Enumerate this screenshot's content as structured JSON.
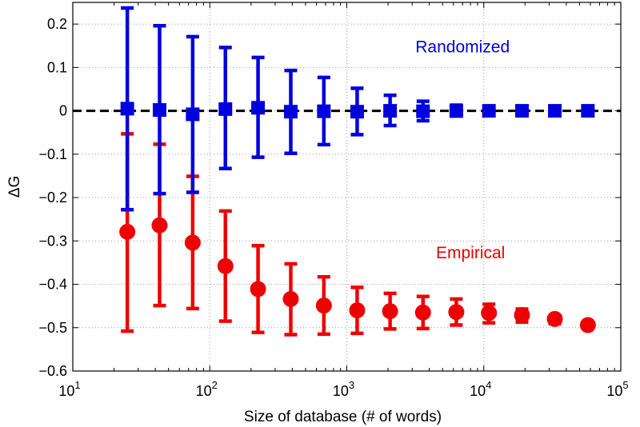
{
  "chart_data": {
    "type": "scatter",
    "title": "",
    "xlabel": "Size of database (# of words)",
    "ylabel": "ΔG",
    "xscale": "log",
    "xlim": [
      10,
      100000
    ],
    "ylim": [
      -0.6,
      0.25
    ],
    "grid": true,
    "x_ticks": [
      {
        "value": 10,
        "base": "10",
        "exp": "1"
      },
      {
        "value": 100,
        "base": "10",
        "exp": "2"
      },
      {
        "value": 1000,
        "base": "10",
        "exp": "3"
      },
      {
        "value": 10000,
        "base": "10",
        "exp": "4"
      },
      {
        "value": 100000,
        "base": "10",
        "exp": "5"
      }
    ],
    "y_ticks": [
      {
        "value": 0.2,
        "label": "0.2"
      },
      {
        "value": 0.1,
        "label": "0.1"
      },
      {
        "value": 0,
        "label": "0"
      },
      {
        "value": -0.1,
        "label": "−0.1"
      },
      {
        "value": -0.2,
        "label": "−0.2"
      },
      {
        "value": -0.3,
        "label": "−0.3"
      },
      {
        "value": -0.4,
        "label": "−0.4"
      },
      {
        "value": -0.5,
        "label": "−0.5"
      },
      {
        "value": -0.6,
        "label": "−0.6"
      }
    ],
    "reference_line": {
      "y": 0,
      "style": "dashed",
      "color": "#000000"
    },
    "series": [
      {
        "name": "Randomized",
        "color": "#0000dd",
        "marker": "square",
        "points": [
          {
            "x": 25,
            "y": 0.005,
            "err_low": -0.228,
            "err_high": 0.237
          },
          {
            "x": 43,
            "y": 0.002,
            "err_low": -0.191,
            "err_high": 0.196
          },
          {
            "x": 75,
            "y": -0.008,
            "err_low": -0.188,
            "err_high": 0.171
          },
          {
            "x": 130,
            "y": 0.004,
            "err_low": -0.133,
            "err_high": 0.146
          },
          {
            "x": 225,
            "y": 0.007,
            "err_low": -0.107,
            "err_high": 0.123
          },
          {
            "x": 390,
            "y": -0.002,
            "err_low": -0.098,
            "err_high": 0.093
          },
          {
            "x": 680,
            "y": -0.001,
            "err_low": -0.078,
            "err_high": 0.077
          },
          {
            "x": 1190,
            "y": -0.002,
            "err_low": -0.055,
            "err_high": 0.052
          },
          {
            "x": 2070,
            "y": 0.0,
            "err_low": -0.034,
            "err_high": 0.036
          },
          {
            "x": 3600,
            "y": -0.001,
            "err_low": -0.023,
            "err_high": 0.022
          },
          {
            "x": 6300,
            "y": 0.0,
            "err_low": -0.012,
            "err_high": 0.013
          },
          {
            "x": 10900,
            "y": 0.0,
            "err_low": -0.006,
            "err_high": 0.006
          },
          {
            "x": 19000,
            "y": 0.0,
            "err_low": -0.004,
            "err_high": 0.004
          },
          {
            "x": 33000,
            "y": 0.0,
            "err_low": -0.002,
            "err_high": 0.002
          },
          {
            "x": 57500,
            "y": 0.0,
            "err_low": -0.001,
            "err_high": 0.001
          }
        ]
      },
      {
        "name": "Empirical",
        "color": "#ee0000",
        "marker": "circle",
        "points": [
          {
            "x": 25,
            "y": -0.279,
            "err_low": -0.508,
            "err_high": -0.053
          },
          {
            "x": 43,
            "y": -0.264,
            "err_low": -0.449,
            "err_high": -0.077
          },
          {
            "x": 75,
            "y": -0.304,
            "err_low": -0.456,
            "err_high": -0.151
          },
          {
            "x": 130,
            "y": -0.358,
            "err_low": -0.485,
            "err_high": -0.231
          },
          {
            "x": 225,
            "y": -0.411,
            "err_low": -0.511,
            "err_high": -0.311
          },
          {
            "x": 390,
            "y": -0.434,
            "err_low": -0.516,
            "err_high": -0.353
          },
          {
            "x": 680,
            "y": -0.449,
            "err_low": -0.515,
            "err_high": -0.383
          },
          {
            "x": 1190,
            "y": -0.46,
            "err_low": -0.513,
            "err_high": -0.407
          },
          {
            "x": 2070,
            "y": -0.462,
            "err_low": -0.503,
            "err_high": -0.421
          },
          {
            "x": 3600,
            "y": -0.465,
            "err_low": -0.502,
            "err_high": -0.428
          },
          {
            "x": 6300,
            "y": -0.464,
            "err_low": -0.494,
            "err_high": -0.434
          },
          {
            "x": 10900,
            "y": -0.466,
            "err_low": -0.489,
            "err_high": -0.446
          },
          {
            "x": 19000,
            "y": -0.471,
            "err_low": -0.487,
            "err_high": -0.457
          },
          {
            "x": 33000,
            "y": -0.48,
            "err_low": -0.491,
            "err_high": -0.472
          },
          {
            "x": 57500,
            "y": -0.494,
            "err_low": -0.499,
            "err_high": -0.489
          }
        ]
      }
    ],
    "annotations": [
      {
        "text": "Randomized",
        "color": "#0000dd",
        "x": 7000,
        "y": 0.135
      },
      {
        "text": "Empirical",
        "color": "#ee0000",
        "x": 8000,
        "y": -0.34
      }
    ]
  }
}
